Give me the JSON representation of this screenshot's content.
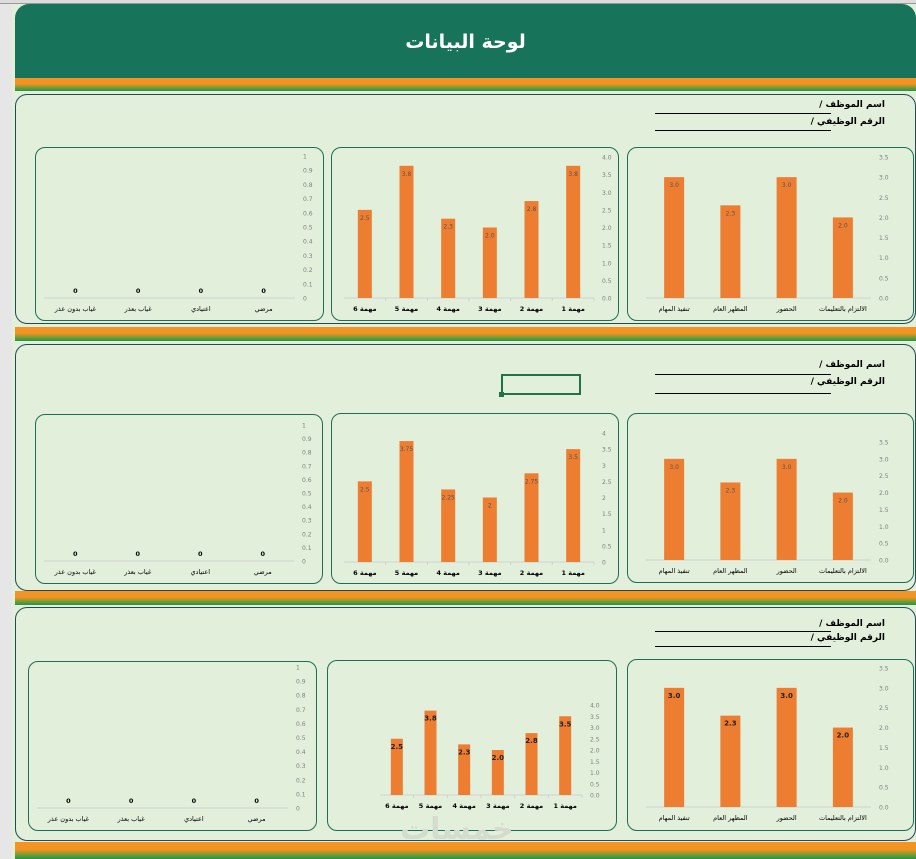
{
  "header": {
    "title": "لوحة البيانات"
  },
  "employee_fields": {
    "name_label": "اسم الموظف /",
    "id_label": "الرقم الوظيفي /"
  },
  "colors": {
    "header": "#17745a",
    "bar": "#ed7d31",
    "stripe_orange": "#f39321",
    "stripe_green": "#1e9848",
    "background": "#e2efda"
  },
  "watermark": "خمسات",
  "chart_data": [
    {
      "id": "s1-eval",
      "type": "bar",
      "categories": [
        "الالتزام بالتعليمات",
        "الحضور",
        "المظهر العام",
        "تنفيذ المهام"
      ],
      "values": [
        2.0,
        3.0,
        2.3,
        3.0
      ],
      "data_labels": [
        "2.0",
        "3.0",
        "2.3",
        "3.0"
      ],
      "ylim": [
        0,
        3.5
      ],
      "yticks": [
        "0.0",
        "0.5",
        "1.0",
        "1.5",
        "2.0",
        "2.5",
        "3.0",
        "3.5"
      ],
      "grid": false
    },
    {
      "id": "s1-tasks",
      "type": "bar",
      "categories": [
        "مهمة 1",
        "مهمة 2",
        "مهمة 3",
        "مهمة 4",
        "مهمة 5",
        "مهمة 6"
      ],
      "values": [
        3.75,
        2.75,
        2.0,
        2.25,
        3.75,
        2.5
      ],
      "data_labels": [
        "3.8",
        "2.8",
        "2.0",
        "2.3",
        "3.8",
        "2.5"
      ],
      "ylim": [
        0,
        4
      ],
      "yticks": [
        "0.0",
        "0.5",
        "1.0",
        "1.5",
        "2.0",
        "2.5",
        "3.0",
        "3.5",
        "4.0"
      ],
      "grid": false
    },
    {
      "id": "s1-absence",
      "type": "bar",
      "categories": [
        "مرضي",
        "اعتيادي",
        "غياب بعذر",
        "غياب بدون عذر"
      ],
      "values": [
        0,
        0,
        0,
        0
      ],
      "data_labels": [
        "0",
        "0",
        "0",
        "0"
      ],
      "ylim": [
        0,
        1
      ],
      "yticks": [
        "0",
        "0.1",
        "0.2",
        "0.3",
        "0.4",
        "0.5",
        "0.6",
        "0.7",
        "0.8",
        "0.9",
        "1"
      ],
      "grid": false
    },
    {
      "id": "s2-eval",
      "type": "bar",
      "categories": [
        "الالتزام بالتعليمات",
        "الحضور",
        "المظهر العام",
        "تنفيذ المهام"
      ],
      "values": [
        2.0,
        3.0,
        2.3,
        3.0
      ],
      "data_labels": [
        "2.0",
        "3.0",
        "2.3",
        "3.0"
      ],
      "ylim": [
        0,
        3.5
      ],
      "yticks": [
        "0.0",
        "0.5",
        "1.0",
        "1.5",
        "2.0",
        "2.5",
        "3.0",
        "3.5"
      ],
      "grid": false
    },
    {
      "id": "s2-tasks",
      "type": "bar",
      "categories": [
        "مهمة 1",
        "مهمة 2",
        "مهمة 3",
        "مهمة 4",
        "مهمة 5",
        "مهمة 6"
      ],
      "values": [
        3.5,
        2.75,
        2,
        2.25,
        3.75,
        2.5
      ],
      "data_labels": [
        "3.5",
        "2.75",
        "2",
        "2.25",
        "3.75",
        "2.5"
      ],
      "ylim": [
        0,
        4
      ],
      "yticks": [
        "0",
        "0.5",
        "1",
        "1.5",
        "2",
        "2.5",
        "3",
        "3.5",
        "4"
      ],
      "grid": false
    },
    {
      "id": "s2-absence",
      "type": "bar",
      "categories": [
        "مرضي",
        "اعتيادي",
        "غياب بعذر",
        "غياب بدون عذر"
      ],
      "values": [
        0,
        0,
        0,
        0
      ],
      "data_labels": [
        "0",
        "0",
        "0",
        "0"
      ],
      "ylim": [
        0,
        1
      ],
      "yticks": [
        "0",
        "0.1",
        "0.2",
        "0.3",
        "0.4",
        "0.5",
        "0.6",
        "0.7",
        "0.8",
        "0.9",
        "1"
      ],
      "grid": false
    },
    {
      "id": "s3-eval",
      "type": "bar",
      "categories": [
        "الالتزام بالتعليمات",
        "الحضور",
        "المظهر العام",
        "تنفيذ المهام"
      ],
      "values": [
        2.0,
        3.0,
        2.3,
        3.0
      ],
      "data_labels": [
        "2.0",
        "3.0",
        "2.3",
        "3.0"
      ],
      "ylim": [
        0,
        3.5
      ],
      "yticks": [
        "0.0",
        "0.5",
        "1.0",
        "1.5",
        "2.0",
        "2.5",
        "3.0",
        "3.5"
      ],
      "grid": false
    },
    {
      "id": "s3-tasks",
      "type": "bar",
      "categories": [
        "مهمة 1",
        "مهمة 2",
        "مهمة 3",
        "مهمة 4",
        "مهمة 5",
        "مهمة 6"
      ],
      "values": [
        3.5,
        2.75,
        2.0,
        2.25,
        3.75,
        2.5
      ],
      "data_labels": [
        "3.5",
        "2.8",
        "2.0",
        "2.3",
        "3.8",
        "2.5"
      ],
      "ylim": [
        0,
        4
      ],
      "yticks": [
        "0.0",
        "0.5",
        "1.0",
        "1.5",
        "2.0",
        "2.5",
        "3.0",
        "3.5",
        "4.0"
      ],
      "grid": false
    },
    {
      "id": "s3-absence",
      "type": "bar",
      "categories": [
        "مرضي",
        "اعتيادي",
        "غياب بعذر",
        "غياب بدون عذر"
      ],
      "values": [
        0,
        0,
        0,
        0
      ],
      "data_labels": [
        "0",
        "0",
        "0",
        "0"
      ],
      "ylim": [
        0,
        1
      ],
      "yticks": [
        "0",
        "0.1",
        "0.2",
        "0.3",
        "0.4",
        "0.5",
        "0.6",
        "0.7",
        "0.8",
        "0.9",
        "1"
      ],
      "grid": false
    }
  ]
}
